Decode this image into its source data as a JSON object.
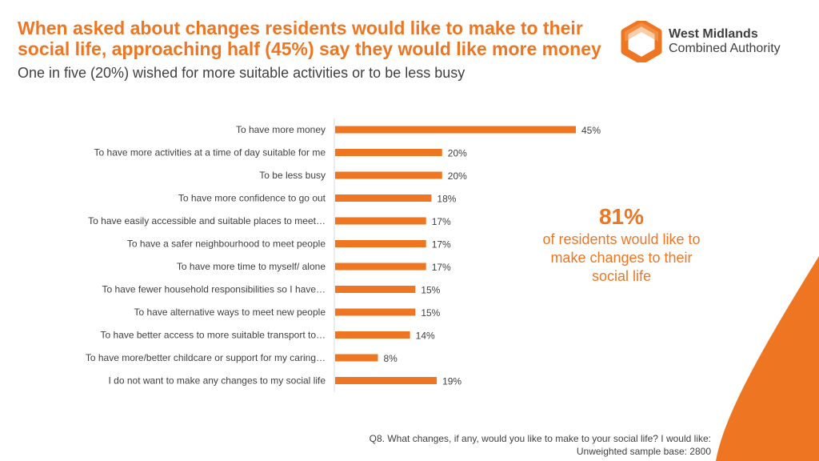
{
  "header": {
    "title": "When asked about changes residents would like to make to their social life, approaching half (45%) say they would like more money",
    "subtitle": "One in five (20%) wished for more suitable activities or to be less busy"
  },
  "logo": {
    "line1": "West Midlands",
    "line2": "Combined Authority",
    "icon": "hexagon-logo-icon"
  },
  "chart_data": {
    "type": "bar",
    "orientation": "horizontal",
    "categories": [
      "To have more money",
      "To have more activities at a time of day suitable for me",
      "To be less busy",
      "To have more confidence to go out",
      "To have easily accessible and suitable places to meet…",
      "To have a safer neighbourhood to meet people",
      "To have more time to myself/ alone",
      "To have fewer household responsibilities so I have…",
      "To have alternative ways to meet new people",
      "To have better access to more suitable transport to…",
      "To have more/better childcare or support for my caring…",
      "I do not want to make any changes to my social life"
    ],
    "values": [
      45,
      20,
      20,
      18,
      17,
      17,
      17,
      15,
      15,
      14,
      8,
      19
    ],
    "value_labels": [
      "45%",
      "20%",
      "20%",
      "18%",
      "17%",
      "17%",
      "17%",
      "15%",
      "15%",
      "14%",
      "8%",
      "19%"
    ],
    "unit": "%",
    "xlim": [
      0,
      45
    ],
    "color": "#ee7623",
    "title": "",
    "xlabel": "",
    "ylabel": ""
  },
  "callout": {
    "value": "81%",
    "text": "of residents would like to make changes to their social life"
  },
  "footnote": {
    "question": "Q8. What changes, if any, would you like to make to your social life? I would like:",
    "base": "Unweighted sample base: 2800"
  },
  "colors": {
    "accent": "#ee7623",
    "text": "#404040"
  }
}
